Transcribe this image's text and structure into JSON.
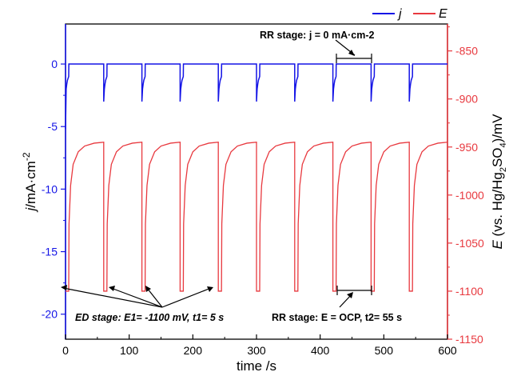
{
  "chart_data": {
    "type": "line",
    "title": "",
    "xlabel": "time /s",
    "ylabel_left": {
      "italic": "j",
      "rest": "/mA·cm",
      "sup": "-2"
    },
    "ylabel_right": {
      "italic": "E",
      "pre": " (vs. Hg/Hg",
      "sub1": "2",
      "mid": "SO",
      "sub2": "4",
      "post": ")/mV"
    },
    "xlim": [
      0,
      600
    ],
    "ylim_left": [
      -22,
      3.2
    ],
    "ylim_right": [
      -1150,
      -822
    ],
    "xticks": [
      "0",
      "100",
      "200",
      "300",
      "400",
      "500",
      "600"
    ],
    "yticks_left": [
      "0",
      "-5",
      "-10",
      "-15",
      "-20"
    ],
    "yticks_right": [
      "-850",
      "-900",
      "-950",
      "-1000",
      "-1050",
      "-1100",
      "-1150"
    ],
    "legend_position": "top-right",
    "series": [
      {
        "name": "j",
        "axis": "left",
        "color": "#1414e6",
        "description_points": {
          "t": [
            0,
            1,
            2,
            3,
            4,
            5,
            5.2,
            60
          ],
          "j": [
            -3.0,
            -2.0,
            -1.6,
            -1.3,
            -1.15,
            -1.0,
            0,
            0
          ]
        }
      },
      {
        "name": "E",
        "axis": "right",
        "color": "#e8393f",
        "description_points": {
          "t": [
            0,
            5,
            5.5,
            8,
            12,
            20,
            30,
            45,
            60
          ],
          "E": [
            -1100,
            -1100,
            -1030,
            -990,
            -968,
            -955,
            -949,
            -946,
            -945
          ]
        }
      }
    ],
    "cycle": {
      "period_s": 60,
      "cycles": 10,
      "ed_duration_s": 5,
      "ed_potential_mV": -1100,
      "j_rr": 0,
      "e_rr_plateau_mV": -945
    },
    "annotations": {
      "rr_top": "RR stage: j = 0 mA·cm-2",
      "ed_stage": "ED stage: E1= -1100 mV, t1= 5 s",
      "rr_bottom": "RR stage: E = OCP, t2= 55 s"
    }
  }
}
